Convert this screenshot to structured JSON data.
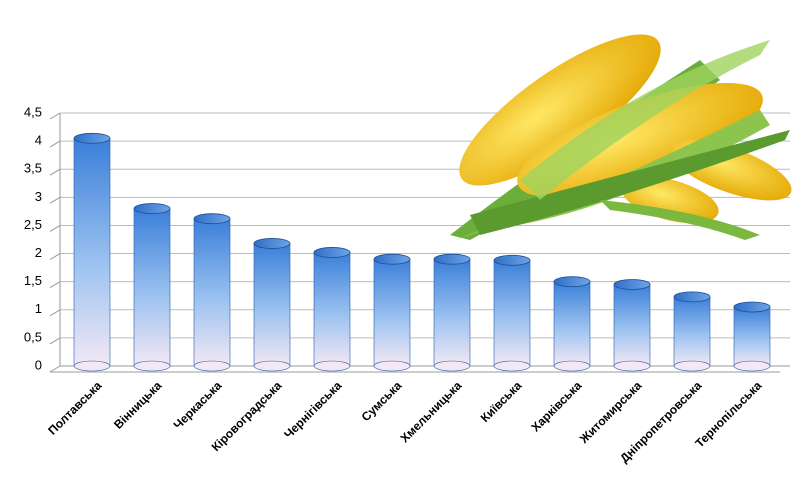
{
  "chart_data": {
    "type": "bar",
    "categories": [
      "Полтавська",
      "Вінницька",
      "Черкаська",
      "Кіровоградська",
      "Чернігівська",
      "Сумська",
      "Хмельницька",
      "Київська",
      "Харківська",
      "Житомирська",
      "Дніпропетровська",
      "Тернопільська"
    ],
    "values": [
      4.05,
      2.8,
      2.62,
      2.18,
      2.02,
      1.9,
      1.9,
      1.88,
      1.5,
      1.45,
      1.23,
      1.05
    ],
    "color": "#3a7fd9",
    "ylim": [
      0,
      4.5
    ],
    "yticks": [
      0,
      {
        "value": 0.5,
        "label": "0,5"
      },
      1,
      {
        "value": 1.5,
        "label": "1,5"
      },
      2,
      {
        "value": 2.5,
        "label": "2,5"
      },
      3,
      {
        "value": 3.5,
        "label": "3,5"
      },
      4,
      {
        "value": 4.5,
        "label": "4,5"
      }
    ],
    "grid": true
  }
}
